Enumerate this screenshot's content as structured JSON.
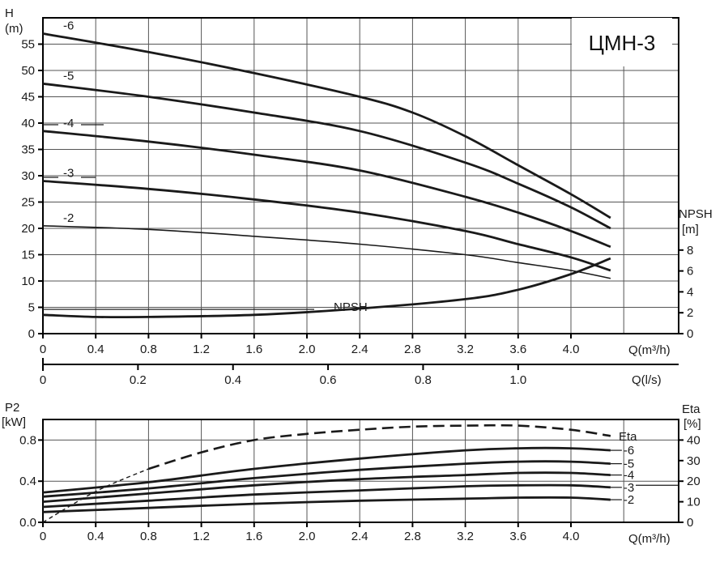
{
  "title": "ЦМН-3",
  "upper": {
    "y_label_line1": "H",
    "y_label_line2": "(m)",
    "y_ticks": [
      0,
      5,
      10,
      15,
      20,
      25,
      30,
      35,
      40,
      45,
      50,
      55
    ],
    "x_ticks": [
      "0",
      "0.4",
      "0.8",
      "1.2",
      "1.6",
      "2.0",
      "2.4",
      "2.8",
      "3.2",
      "3.6",
      "4.0"
    ],
    "x_label": "Q(m³/h)",
    "npsh_label_line1": "NPSH",
    "npsh_label_line2": "[m]",
    "npsh_ticks": [
      0,
      2,
      4,
      6,
      8
    ],
    "npsh_curve_label": "NPSH"
  },
  "ls_axis": {
    "ticks": [
      "0",
      "0.2",
      "0.4",
      "0.6",
      "0.8",
      "1.0"
    ],
    "label": "Q(l/s)"
  },
  "lower": {
    "y_label_line1": "P2",
    "y_label_line2": "[kW]",
    "y_ticks": [
      "0.0",
      "0.4",
      "0.8"
    ],
    "x_ticks": [
      "0",
      "0.4",
      "0.8",
      "1.2",
      "1.6",
      "2.0",
      "2.4",
      "2.8",
      "3.2",
      "3.6",
      "4.0"
    ],
    "x_label": "Q(m³/h)",
    "eta_label_line1": "Eta",
    "eta_label_line2": "[%]",
    "eta_ticks": [
      0,
      10,
      20,
      30,
      40
    ],
    "eta_curve_label": "Eta"
  },
  "chart_data": [
    {
      "type": "line",
      "xlabel": "Q(m³/h)",
      "ylabel": "H (m)",
      "xlim": [
        0,
        4.5
      ],
      "ylim": [
        0,
        60
      ],
      "series": [
        {
          "name": "-6",
          "x": [
            0,
            0.8,
            1.6,
            2.4,
            2.8,
            3.2,
            3.6,
            4.0,
            4.3
          ],
          "values": [
            57,
            53.5,
            49.5,
            45,
            42,
            37.5,
            32,
            26.5,
            22
          ]
        },
        {
          "name": "-5",
          "x": [
            0,
            0.8,
            1.6,
            2.4,
            3.2,
            3.6,
            4.0,
            4.3
          ],
          "values": [
            47.5,
            45,
            42,
            38.5,
            32.5,
            28.5,
            24,
            20
          ]
        },
        {
          "name": "-4",
          "x": [
            0,
            0.8,
            1.6,
            2.4,
            3.2,
            3.6,
            4.0,
            4.3
          ],
          "values": [
            38.5,
            36.5,
            34,
            31,
            26,
            23,
            19.5,
            16.5
          ]
        },
        {
          "name": "-3",
          "x": [
            0,
            0.8,
            1.6,
            2.4,
            3.2,
            3.6,
            4.0,
            4.3
          ],
          "values": [
            29,
            27.5,
            25.5,
            23,
            19.5,
            17,
            14.5,
            12
          ]
        },
        {
          "name": "-2",
          "x": [
            0,
            0.8,
            1.6,
            2.4,
            3.2,
            3.6,
            4.0,
            4.3
          ],
          "values": [
            20.5,
            19.8,
            18.5,
            17,
            15,
            13.5,
            12,
            10.5
          ]
        },
        {
          "name": "NPSH",
          "x": [
            0,
            0.4,
            0.8,
            1.6,
            2.4,
            3.2,
            3.6,
            4.0,
            4.3
          ],
          "values": [
            1.8,
            1.6,
            1.6,
            1.8,
            2.4,
            3.3,
            4.2,
            5.7,
            7.2
          ]
        }
      ]
    },
    {
      "type": "line",
      "xlabel": "Q(m³/h)",
      "ylabel": "P2 [kW]",
      "xlim": [
        0,
        4.5
      ],
      "ylim": [
        0,
        1.0
      ],
      "series": [
        {
          "name": "-6",
          "x": [
            0,
            0.8,
            1.6,
            2.4,
            3.2,
            3.6,
            4.0,
            4.3
          ],
          "values": [
            0.29,
            0.39,
            0.52,
            0.62,
            0.7,
            0.72,
            0.72,
            0.7
          ]
        },
        {
          "name": "-5",
          "x": [
            0,
            0.8,
            1.6,
            2.4,
            3.2,
            3.6,
            4.0,
            4.3
          ],
          "values": [
            0.25,
            0.33,
            0.43,
            0.51,
            0.57,
            0.59,
            0.59,
            0.57
          ]
        },
        {
          "name": "-4",
          "x": [
            0,
            0.8,
            1.6,
            2.4,
            3.2,
            3.6,
            4.0,
            4.3
          ],
          "values": [
            0.2,
            0.28,
            0.36,
            0.42,
            0.46,
            0.48,
            0.48,
            0.46
          ]
        },
        {
          "name": "-3",
          "x": [
            0,
            0.8,
            1.6,
            2.4,
            3.2,
            3.6,
            4.0,
            4.3
          ],
          "values": [
            0.15,
            0.21,
            0.27,
            0.31,
            0.35,
            0.36,
            0.36,
            0.34
          ]
        },
        {
          "name": "-2",
          "x": [
            0,
            0.8,
            1.6,
            2.4,
            3.2,
            3.6,
            4.0,
            4.3
          ],
          "values": [
            0.1,
            0.14,
            0.18,
            0.21,
            0.23,
            0.24,
            0.24,
            0.22
          ]
        },
        {
          "name": "Eta",
          "axis": "Eta [%]",
          "ylim_eta": [
            0,
            50
          ],
          "x": [
            0,
            0.4,
            0.8,
            1.2,
            1.6,
            2.0,
            2.4,
            2.8,
            3.2,
            3.6,
            4.0,
            4.3
          ],
          "values": [
            0,
            15,
            26,
            34,
            40,
            43,
            45,
            46.5,
            47,
            47,
            45,
            42
          ]
        }
      ]
    }
  ]
}
